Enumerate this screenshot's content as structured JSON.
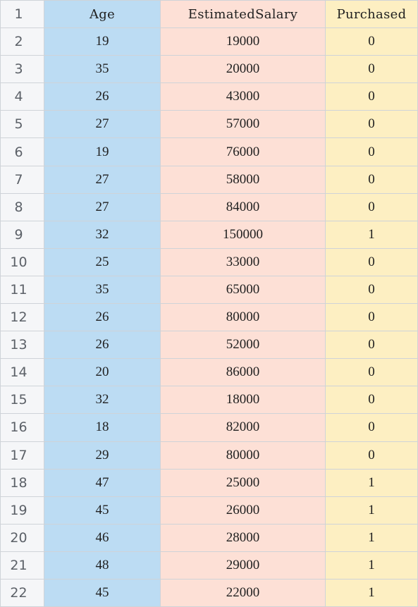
{
  "headers": {
    "row_label": "1",
    "age": "Age",
    "salary": "EstimatedSalary",
    "purchased": "Purchased"
  },
  "rows": [
    {
      "row": "2",
      "age": "19",
      "salary": "19000",
      "purchased": "0"
    },
    {
      "row": "3",
      "age": "35",
      "salary": "20000",
      "purchased": "0"
    },
    {
      "row": "4",
      "age": "26",
      "salary": "43000",
      "purchased": "0"
    },
    {
      "row": "5",
      "age": "27",
      "salary": "57000",
      "purchased": "0"
    },
    {
      "row": "6",
      "age": "19",
      "salary": "76000",
      "purchased": "0"
    },
    {
      "row": "7",
      "age": "27",
      "salary": "58000",
      "purchased": "0"
    },
    {
      "row": "8",
      "age": "27",
      "salary": "84000",
      "purchased": "0"
    },
    {
      "row": "9",
      "age": "32",
      "salary": "150000",
      "purchased": "1"
    },
    {
      "row": "10",
      "age": "25",
      "salary": "33000",
      "purchased": "0"
    },
    {
      "row": "11",
      "age": "35",
      "salary": "65000",
      "purchased": "0"
    },
    {
      "row": "12",
      "age": "26",
      "salary": "80000",
      "purchased": "0"
    },
    {
      "row": "13",
      "age": "26",
      "salary": "52000",
      "purchased": "0"
    },
    {
      "row": "14",
      "age": "20",
      "salary": "86000",
      "purchased": "0"
    },
    {
      "row": "15",
      "age": "32",
      "salary": "18000",
      "purchased": "0"
    },
    {
      "row": "16",
      "age": "18",
      "salary": "82000",
      "purchased": "0"
    },
    {
      "row": "17",
      "age": "29",
      "salary": "80000",
      "purchased": "0"
    },
    {
      "row": "18",
      "age": "47",
      "salary": "25000",
      "purchased": "1"
    },
    {
      "row": "19",
      "age": "45",
      "salary": "26000",
      "purchased": "1"
    },
    {
      "row": "20",
      "age": "46",
      "salary": "28000",
      "purchased": "1"
    },
    {
      "row": "21",
      "age": "48",
      "salary": "29000",
      "purchased": "1"
    },
    {
      "row": "22",
      "age": "45",
      "salary": "22000",
      "purchased": "1"
    }
  ],
  "colors": {
    "age_column": "#bcdcf3",
    "salary_column": "#fde0d6",
    "purchased_column": "#fdefc2",
    "row_header": "#f5f6f8",
    "grid_line": "#cfd3d8"
  }
}
